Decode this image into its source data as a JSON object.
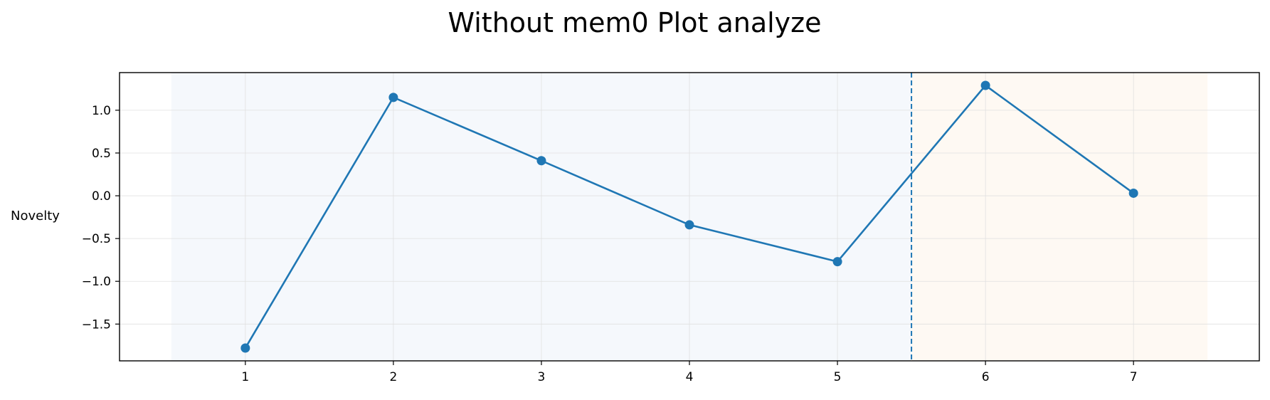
{
  "chart_data": {
    "type": "line",
    "title": "Without mem0 Plot analyze",
    "xlabel": "",
    "ylabel": "Novelty",
    "x": [
      1,
      2,
      3,
      4,
      5,
      6,
      7
    ],
    "series": [
      {
        "values": [
          -1.78,
          1.15,
          0.41,
          -0.34,
          -0.77,
          1.29,
          0.03
        ],
        "color": "#1f77b4"
      }
    ],
    "xlim": [
      0.15,
      7.85
    ],
    "ylim": [
      -1.93,
      1.44
    ],
    "xticks": [
      1,
      2,
      3,
      4,
      5,
      6,
      7
    ],
    "yticks": [
      1.0,
      0.5,
      0.0,
      -0.5,
      -1.0,
      -1.5
    ],
    "ytick_labels": [
      "1.0",
      "0.5",
      "0.0",
      "−0.5",
      "−1.0",
      "−1.5"
    ],
    "grid": true,
    "regions": [
      {
        "x_start": 0.5,
        "x_end": 5.5,
        "color": "#f5f8fc"
      },
      {
        "x_start": 5.5,
        "x_end": 7.5,
        "color": "#fef9f3"
      }
    ],
    "vline": {
      "x": 5.5,
      "style": "dashed",
      "color": "#1f77b4"
    }
  }
}
